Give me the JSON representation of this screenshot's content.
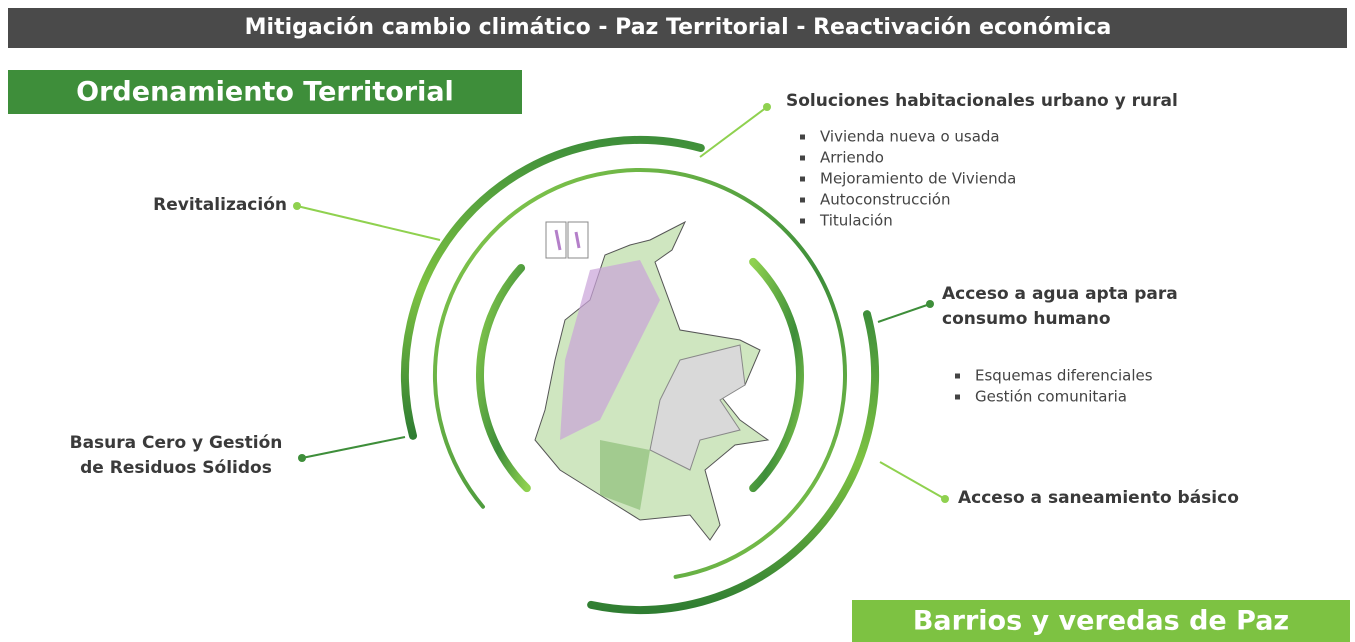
{
  "header": {
    "title": "Mitigación cambio climático - Paz Territorial - Reactivación económica"
  },
  "left_banner": {
    "title": "Ordenamiento Territorial"
  },
  "right_banner": {
    "title": "Barrios y veredas de Paz"
  },
  "items": [
    {
      "title": [
        "Soluciones habitacionales urbano y rural"
      ],
      "bullets": [
        "Vivienda nueva o usada",
        "Arriendo",
        "Mejoramiento de Vivienda",
        "Autoconstrucción",
        "Titulación"
      ]
    },
    {
      "title": [
        "Revitalización"
      ],
      "bullets": []
    },
    {
      "title": [
        "Acceso a agua apta para",
        "consumo humano"
      ],
      "bullets": [
        "Esquemas diferenciales",
        "Gestión comunitaria"
      ]
    },
    {
      "title": [
        "Basura Cero y Gestión",
        "de Residuos Sólidos"
      ],
      "bullets": []
    },
    {
      "title": [
        "Acceso a saneamiento básico"
      ],
      "bullets": []
    }
  ]
}
